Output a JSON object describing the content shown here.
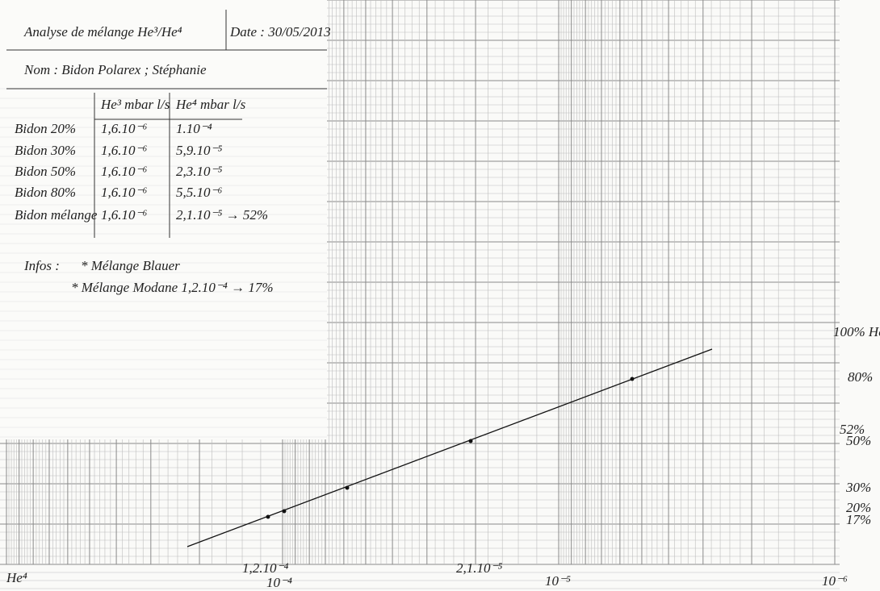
{
  "header": {
    "title": "Analyse de mélange He³/He⁴",
    "date": "Date : 30/05/2013",
    "name": "Nom : Bidon Polarex ; Stéphanie"
  },
  "table": {
    "columns": [
      "He³ mbar l/s",
      "He⁴ mbar l/s"
    ],
    "rows": [
      [
        "Bidon 20%",
        "1,6.10⁻⁶",
        "1.10⁻⁴"
      ],
      [
        "Bidon 30%",
        "1,6.10⁻⁶",
        "5,9.10⁻⁵"
      ],
      [
        "Bidon 50%",
        "1,6.10⁻⁶",
        "2,3.10⁻⁵"
      ],
      [
        "Bidon 80%",
        "1,6.10⁻⁶",
        "5,5.10⁻⁶"
      ],
      [
        "Bidon mélange",
        "1,6.10⁻⁶",
        "2,1.10⁻⁵ → 52%"
      ]
    ]
  },
  "infos": {
    "label": "Infos :",
    "items": [
      "* Mélange Blauer",
      "* Mélange Modane 1,2.10⁻⁴ → 17%"
    ]
  },
  "x_labels": [
    "He⁴",
    "1,2.10⁻⁴",
    "10⁻⁴",
    "2,1.10⁻⁵",
    "10⁻⁵",
    "10⁻⁶"
  ],
  "right_labels": [
    "100% He",
    "80%",
    "52%",
    "50%",
    "30%",
    "20%",
    "17%"
  ]
}
